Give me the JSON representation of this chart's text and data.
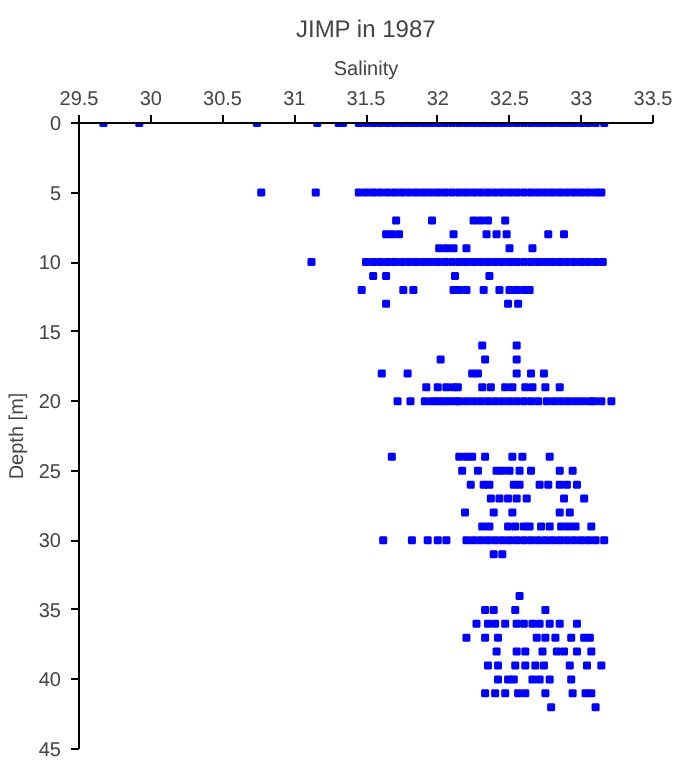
{
  "chart_data": {
    "type": "scatter",
    "title": "JIMP in 1987",
    "xlabel": "Salinity",
    "ylabel": "Depth [m]",
    "xlim": [
      29.5,
      33.5
    ],
    "xticks": [
      29.5,
      30,
      30.5,
      31,
      31.5,
      32,
      32.5,
      33,
      33.5
    ],
    "ylim": [
      45,
      0
    ],
    "yticks": [
      0,
      5,
      10,
      15,
      20,
      25,
      30,
      35,
      40,
      45
    ],
    "grid": false,
    "marker": "square",
    "series": [
      {
        "color": "#0000ff",
        "x": [
          29.67,
          29.92,
          30.74,
          31.16,
          31.31,
          31.34,
          31.45,
          31.5,
          31.55,
          31.6,
          31.65,
          31.7,
          31.75,
          31.8,
          31.85,
          31.9,
          31.95,
          32.0,
          32.05,
          32.1,
          32.15,
          32.2,
          32.25,
          32.3,
          32.35,
          32.4,
          32.45,
          32.5,
          32.55,
          32.6,
          32.65,
          32.7,
          32.75,
          32.8,
          32.85,
          32.9,
          32.95,
          33.0,
          33.05,
          33.1,
          33.16
        ],
        "values": [
          0,
          0,
          0,
          0,
          0,
          0,
          0,
          0,
          0,
          0,
          0,
          0,
          0,
          0,
          0,
          0,
          0,
          0,
          0,
          0,
          0,
          0,
          0,
          0,
          0,
          0,
          0,
          0,
          0,
          0,
          0,
          0,
          0,
          0,
          0,
          0,
          0,
          0,
          0,
          0,
          0
        ]
      },
      {
        "color": "#0000ff",
        "x": [
          30.77,
          31.15,
          31.45,
          31.5,
          31.55,
          31.6,
          31.65,
          31.7,
          31.75,
          31.8,
          31.85,
          31.9,
          31.95,
          32.0,
          32.05,
          32.1,
          32.15,
          32.2,
          32.25,
          32.3,
          32.35,
          32.4,
          32.45,
          32.5,
          32.55,
          32.6,
          32.65,
          32.7,
          32.75,
          32.8,
          32.85,
          32.9,
          32.95,
          33.0,
          33.05,
          33.1,
          33.14
        ],
        "values": [
          5,
          5,
          5,
          5,
          5,
          5,
          5,
          5,
          5,
          5,
          5,
          5,
          5,
          5,
          5,
          5,
          5,
          5,
          5,
          5,
          5,
          5,
          5,
          5,
          5,
          5,
          5,
          5,
          5,
          5,
          5,
          5,
          5,
          5,
          5,
          5,
          5
        ]
      },
      {
        "color": "#0000ff",
        "x": [
          31.71,
          31.96,
          32.25,
          32.3,
          32.35,
          32.47
        ],
        "values": [
          7,
          7,
          7,
          7,
          7,
          7
        ]
      },
      {
        "color": "#0000ff",
        "x": [
          31.64,
          31.68,
          31.73,
          32.11,
          32.34,
          32.41,
          32.48,
          32.77,
          32.88
        ],
        "values": [
          8,
          8,
          8,
          8,
          8,
          8,
          8,
          8,
          8
        ]
      },
      {
        "color": "#0000ff",
        "x": [
          32.01,
          32.06,
          32.11,
          32.2,
          32.5,
          32.66
        ],
        "values": [
          9,
          9,
          9,
          9,
          9,
          9
        ]
      },
      {
        "color": "#0000ff",
        "x": [
          31.12,
          31.5,
          31.55,
          31.6,
          31.65,
          31.7,
          31.75,
          31.8,
          31.85,
          31.9,
          31.95,
          32.0,
          32.05,
          32.1,
          32.15,
          32.2,
          32.25,
          32.3,
          32.35,
          32.4,
          32.45,
          32.5,
          32.55,
          32.6,
          32.65,
          32.7,
          32.75,
          32.8,
          32.85,
          32.9,
          32.95,
          33.0,
          33.05,
          33.1,
          33.15
        ],
        "values": [
          10,
          10,
          10,
          10,
          10,
          10,
          10,
          10,
          10,
          10,
          10,
          10,
          10,
          10,
          10,
          10,
          10,
          10,
          10,
          10,
          10,
          10,
          10,
          10,
          10,
          10,
          10,
          10,
          10,
          10,
          10,
          10,
          10,
          10,
          10
        ]
      },
      {
        "color": "#0000ff",
        "x": [
          31.55,
          31.64,
          32.12,
          32.36
        ],
        "values": [
          11,
          11,
          11,
          11
        ]
      },
      {
        "color": "#0000ff",
        "x": [
          31.47,
          31.76,
          31.83,
          32.11,
          32.15,
          32.2,
          32.32,
          32.43,
          32.5,
          32.55,
          32.6,
          32.64
        ],
        "values": [
          12,
          12,
          12,
          12,
          12,
          12,
          12,
          12,
          12,
          12,
          12,
          12
        ]
      },
      {
        "color": "#0000ff",
        "x": [
          31.64,
          32.49,
          32.56
        ],
        "values": [
          13,
          13,
          13
        ]
      },
      {
        "color": "#0000ff",
        "x": [
          32.31,
          32.55
        ],
        "values": [
          16,
          16
        ]
      },
      {
        "color": "#0000ff",
        "x": [
          32.02,
          32.33,
          32.55
        ],
        "values": [
          17,
          17,
          17
        ]
      },
      {
        "color": "#0000ff",
        "x": [
          31.61,
          31.79,
          32.24,
          32.28,
          32.55,
          32.65,
          32.74
        ],
        "values": [
          18,
          18,
          18,
          18,
          18,
          18,
          18
        ]
      },
      {
        "color": "#0000ff",
        "x": [
          31.92,
          32.0,
          32.06,
          32.11,
          32.14,
          32.31,
          32.37,
          32.47,
          32.52,
          32.61,
          32.66,
          32.75,
          32.85
        ],
        "values": [
          19,
          19,
          19,
          19,
          19,
          19,
          19,
          19,
          19,
          19,
          19,
          19,
          19
        ]
      },
      {
        "color": "#0000ff",
        "x": [
          31.72,
          31.81,
          31.91,
          31.96,
          32.0,
          32.04,
          32.08,
          32.12,
          32.15,
          32.2,
          32.25,
          32.3,
          32.35,
          32.4,
          32.45,
          32.5,
          32.55,
          32.6,
          32.65,
          32.7,
          32.76,
          32.81,
          32.86,
          32.91,
          32.96,
          33.01,
          33.06,
          33.09,
          33.14,
          33.21
        ],
        "values": [
          20,
          20,
          20,
          20,
          20,
          20,
          20,
          20,
          20,
          20,
          20,
          20,
          20,
          20,
          20,
          20,
          20,
          20,
          20,
          20,
          20,
          20,
          20,
          20,
          20,
          20,
          20,
          20,
          20,
          20
        ]
      },
      {
        "color": "#0000ff",
        "x": [
          31.68,
          32.15,
          32.2,
          32.24,
          32.33,
          32.52,
          32.59,
          32.78
        ],
        "values": [
          24,
          24,
          24,
          24,
          24,
          24,
          24,
          24
        ]
      },
      {
        "color": "#0000ff",
        "x": [
          32.17,
          32.28,
          32.41,
          32.45,
          32.5,
          32.57,
          32.65,
          32.85,
          32.94
        ],
        "values": [
          25,
          25,
          25,
          25,
          25,
          25,
          25,
          25,
          25
        ]
      },
      {
        "color": "#0000ff",
        "x": [
          32.23,
          32.32,
          32.36,
          32.53,
          32.57,
          32.71,
          32.77,
          32.85,
          32.9,
          32.97
        ],
        "values": [
          26,
          26,
          26,
          26,
          26,
          26,
          26,
          26,
          26,
          26
        ]
      },
      {
        "color": "#0000ff",
        "x": [
          32.37,
          32.43,
          32.49,
          32.55,
          32.62,
          32.88,
          33.02
        ],
        "values": [
          27,
          27,
          27,
          27,
          27,
          27,
          27
        ]
      },
      {
        "color": "#0000ff",
        "x": [
          32.19,
          32.39,
          32.52,
          32.85,
          32.92
        ],
        "values": [
          28,
          28,
          28,
          28,
          28
        ]
      },
      {
        "color": "#0000ff",
        "x": [
          32.31,
          32.36,
          32.49,
          32.54,
          32.6,
          32.64,
          32.72,
          32.78,
          32.86,
          32.91,
          32.96,
          33.07
        ],
        "values": [
          29,
          29,
          29,
          29,
          29,
          29,
          29,
          29,
          29,
          29,
          29,
          29
        ]
      },
      {
        "color": "#0000ff",
        "x": [
          31.62,
          31.82,
          31.93,
          32.0,
          32.06,
          32.2,
          32.25,
          32.3,
          32.35,
          32.4,
          32.45,
          32.5,
          32.55,
          32.6,
          32.65,
          32.7,
          32.75,
          32.8,
          32.85,
          32.9,
          32.95,
          33.0,
          33.05,
          33.1,
          33.16
        ],
        "values": [
          30,
          30,
          30,
          30,
          30,
          30,
          30,
          30,
          30,
          30,
          30,
          30,
          30,
          30,
          30,
          30,
          30,
          30,
          30,
          30,
          30,
          30,
          30,
          30,
          30
        ]
      },
      {
        "color": "#0000ff",
        "x": [
          32.39,
          32.45
        ],
        "values": [
          31,
          31
        ]
      },
      {
        "color": "#0000ff",
        "x": [
          32.57
        ],
        "values": [
          34
        ]
      },
      {
        "color": "#0000ff",
        "x": [
          32.33,
          32.39,
          32.54,
          32.75
        ],
        "values": [
          35,
          35,
          35,
          35
        ]
      },
      {
        "color": "#0000ff",
        "x": [
          32.27,
          32.35,
          32.4,
          32.47,
          32.55,
          32.6,
          32.66,
          32.71,
          32.78,
          32.85,
          32.97
        ],
        "values": [
          36,
          36,
          36,
          36,
          36,
          36,
          36,
          36,
          36,
          36,
          36
        ]
      },
      {
        "color": "#0000ff",
        "x": [
          32.2,
          32.33,
          32.42,
          32.69,
          32.75,
          32.82,
          32.93,
          33.02,
          33.06
        ],
        "values": [
          37,
          37,
          37,
          37,
          37,
          37,
          37,
          37,
          37
        ]
      },
      {
        "color": "#0000ff",
        "x": [
          32.41,
          32.55,
          32.61,
          32.73,
          32.83,
          32.88,
          32.97,
          33.07
        ],
        "values": [
          38,
          38,
          38,
          38,
          38,
          38,
          38,
          38
        ]
      },
      {
        "color": "#0000ff",
        "x": [
          32.35,
          32.42,
          32.54,
          32.61,
          32.68,
          32.74,
          32.92,
          33.04,
          33.14
        ],
        "values": [
          39,
          39,
          39,
          39,
          39,
          39,
          39,
          39,
          39
        ]
      },
      {
        "color": "#0000ff",
        "x": [
          32.42,
          32.49,
          32.53,
          32.66,
          32.71,
          32.78,
          32.93
        ],
        "values": [
          40,
          40,
          40,
          40,
          40,
          40,
          40
        ]
      },
      {
        "color": "#0000ff",
        "x": [
          32.33,
          32.4,
          32.47,
          32.56,
          32.61,
          32.75,
          32.94,
          33.03,
          33.07
        ],
        "values": [
          41,
          41,
          41,
          41,
          41,
          41,
          41,
          41,
          41
        ]
      },
      {
        "color": "#0000ff",
        "x": [
          32.79,
          33.1
        ],
        "values": [
          42,
          42
        ]
      }
    ]
  }
}
